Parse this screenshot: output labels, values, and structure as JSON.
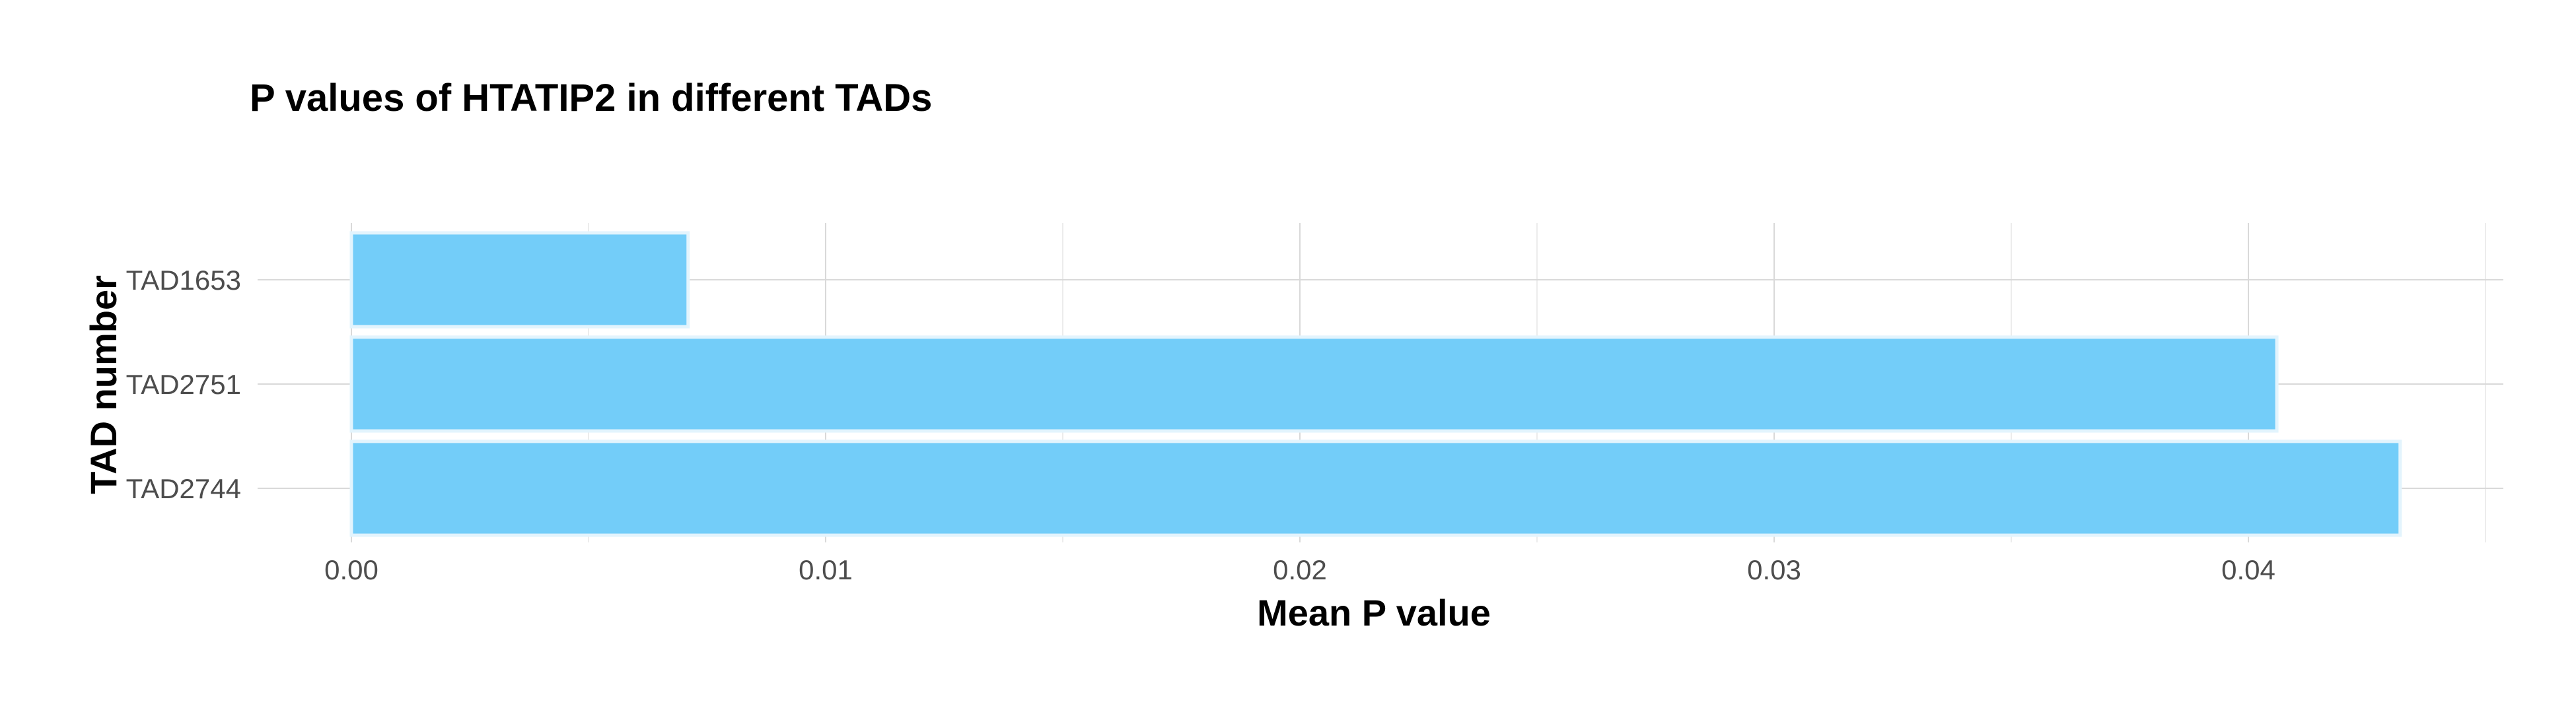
{
  "chart_data": {
    "type": "bar",
    "orientation": "horizontal",
    "title": "P values of HTATIP2 in different TADs",
    "xlabel": "Mean P value",
    "ylabel": "TAD number",
    "categories": [
      "TAD1653",
      "TAD2751",
      "TAD2744"
    ],
    "values": [
      0.0071,
      0.0406,
      0.0432
    ],
    "xlim": [
      0.0,
      0.0453
    ],
    "x_ticks": [
      0.0,
      0.01,
      0.02,
      0.03,
      0.04
    ],
    "x_tick_labels": [
      "0.00",
      "0.01",
      "0.02",
      "0.03",
      "0.04"
    ],
    "grid": true,
    "bar_color": "#73cdf9",
    "bar_outline_color": "#e3f4fd"
  }
}
